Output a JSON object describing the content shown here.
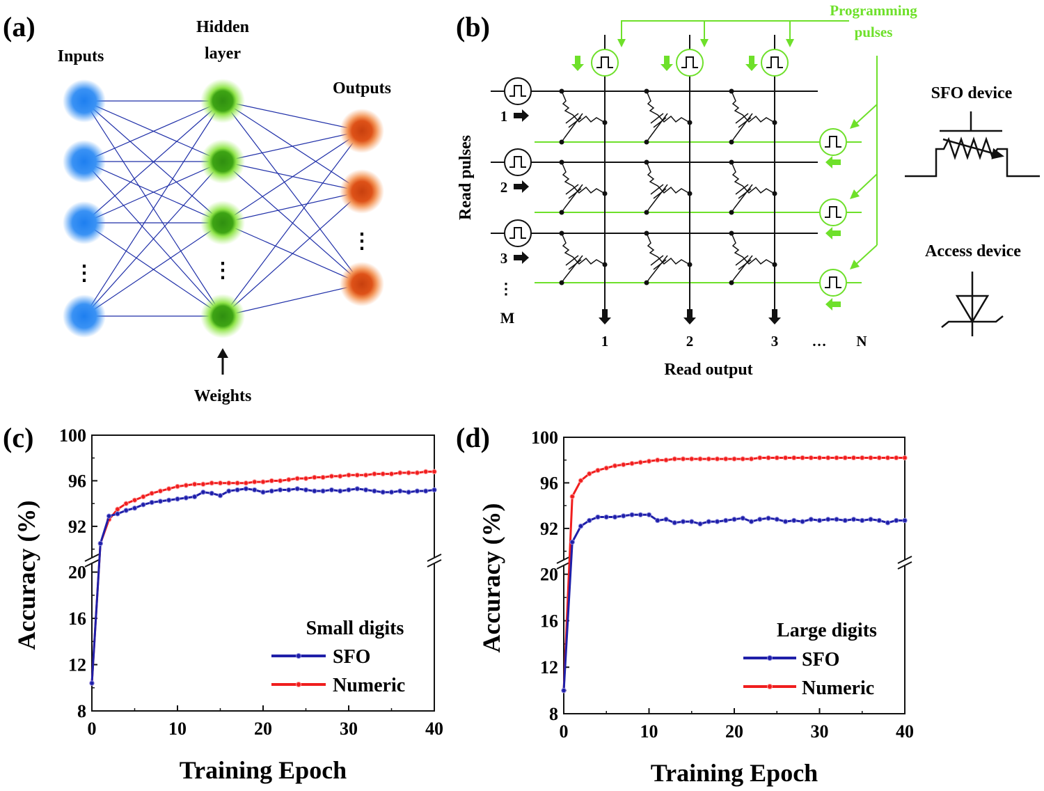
{
  "panel_a": {
    "tag": "(a)",
    "inputs_label": "Inputs",
    "hidden_label_1": "Hidden",
    "hidden_label_2": "layer",
    "outputs_label": "Outputs",
    "weights_label": "Weights",
    "dots": "⋮",
    "colors": {
      "input": "#2f8cf5",
      "hidden": "#3aa80f",
      "output": "#e2561b",
      "edge": "#1f2fa8"
    }
  },
  "panel_b": {
    "tag": "(b)",
    "programming_1": "Programming",
    "programming_2": "pulses",
    "read_pulses": "Read pulses",
    "read_output": "Read output",
    "row_labels": [
      "1",
      "2",
      "3"
    ],
    "row_more": "⋮",
    "row_last": "M",
    "col_labels": [
      "1",
      "2",
      "3"
    ],
    "col_more": "…",
    "col_last": "N",
    "sfo_device": "SFO device",
    "access_device": "Access device",
    "colors": {
      "program": "#6ee02a",
      "wire": "#111111"
    }
  },
  "chart_data": [
    {
      "type": "line",
      "tag": "(c)",
      "xlabel": "Training Epoch",
      "ylabel": "Accuracy (%)",
      "legend_title": "Small digits",
      "legend_position": "bottom-right",
      "xlim": [
        0,
        40
      ],
      "xticks": [
        "0",
        "10",
        "20",
        "30",
        "40"
      ],
      "yticks_upper": [
        "92",
        "96",
        "100"
      ],
      "yticks_lower": [
        "8",
        "12",
        "16",
        "20"
      ],
      "y_break": {
        "lower_range": [
          8,
          21
        ],
        "upper_range": [
          89,
          100
        ]
      },
      "series": [
        {
          "name": "SFO",
          "color": "#1f1fa8",
          "x": [
            0,
            1,
            2,
            3,
            4,
            5,
            6,
            7,
            8,
            9,
            10,
            11,
            12,
            13,
            14,
            15,
            16,
            17,
            18,
            19,
            20,
            21,
            22,
            23,
            24,
            25,
            26,
            27,
            28,
            29,
            30,
            31,
            32,
            33,
            34,
            35,
            36,
            37,
            38,
            39,
            40
          ],
          "y": [
            10.4,
            90.5,
            92.9,
            93.1,
            93.4,
            93.6,
            93.9,
            94.1,
            94.2,
            94.3,
            94.4,
            94.5,
            94.6,
            95.0,
            94.9,
            94.7,
            95.1,
            95.2,
            95.3,
            95.2,
            95.0,
            95.1,
            95.2,
            95.2,
            95.3,
            95.2,
            95.1,
            95.1,
            95.2,
            95.1,
            95.2,
            95.3,
            95.2,
            95.1,
            95.0,
            95.0,
            95.1,
            95.0,
            95.1,
            95.1,
            95.2
          ]
        },
        {
          "name": "Numeric",
          "color": "#f01e1e",
          "x": [
            0,
            1,
            2,
            3,
            4,
            5,
            6,
            7,
            8,
            9,
            10,
            11,
            12,
            13,
            14,
            15,
            16,
            17,
            18,
            19,
            20,
            21,
            22,
            23,
            24,
            25,
            26,
            27,
            28,
            29,
            30,
            31,
            32,
            33,
            34,
            35,
            36,
            37,
            38,
            39,
            40
          ],
          "y": [
            10.4,
            90.5,
            92.6,
            93.5,
            94.0,
            94.3,
            94.6,
            94.9,
            95.1,
            95.3,
            95.5,
            95.6,
            95.7,
            95.7,
            95.8,
            95.8,
            95.8,
            95.8,
            95.8,
            95.9,
            95.9,
            96.0,
            96.0,
            96.1,
            96.2,
            96.2,
            96.3,
            96.3,
            96.4,
            96.4,
            96.5,
            96.5,
            96.5,
            96.6,
            96.6,
            96.6,
            96.7,
            96.7,
            96.7,
            96.8,
            96.8
          ]
        }
      ]
    },
    {
      "type": "line",
      "tag": "(d)",
      "xlabel": "Training Epoch",
      "ylabel": "Accuracy (%)",
      "legend_title": "Large digits",
      "legend_position": "bottom-right",
      "xlim": [
        0,
        40
      ],
      "xticks": [
        "0",
        "10",
        "20",
        "30",
        "40"
      ],
      "yticks_upper": [
        "92",
        "96",
        "100"
      ],
      "yticks_lower": [
        "8",
        "12",
        "16",
        "20"
      ],
      "y_break": {
        "lower_range": [
          8,
          21
        ],
        "upper_range": [
          89,
          100
        ]
      },
      "series": [
        {
          "name": "SFO",
          "color": "#1f1fa8",
          "x": [
            0,
            1,
            2,
            3,
            4,
            5,
            6,
            7,
            8,
            9,
            10,
            11,
            12,
            13,
            14,
            15,
            16,
            17,
            18,
            19,
            20,
            21,
            22,
            23,
            24,
            25,
            26,
            27,
            28,
            29,
            30,
            31,
            32,
            33,
            34,
            35,
            36,
            37,
            38,
            39,
            40
          ],
          "y": [
            10.0,
            90.8,
            92.2,
            92.7,
            93.0,
            93.0,
            93.0,
            93.1,
            93.2,
            93.2,
            93.2,
            92.7,
            92.8,
            92.5,
            92.6,
            92.6,
            92.4,
            92.6,
            92.6,
            92.7,
            92.8,
            92.9,
            92.6,
            92.8,
            92.9,
            92.8,
            92.6,
            92.7,
            92.6,
            92.8,
            92.7,
            92.8,
            92.8,
            92.7,
            92.8,
            92.7,
            92.8,
            92.7,
            92.5,
            92.7,
            92.7
          ]
        },
        {
          "name": "Numeric",
          "color": "#f01e1e",
          "x": [
            0,
            1,
            2,
            3,
            4,
            5,
            6,
            7,
            8,
            9,
            10,
            11,
            12,
            13,
            14,
            15,
            16,
            17,
            18,
            19,
            20,
            21,
            22,
            23,
            24,
            25,
            26,
            27,
            28,
            29,
            30,
            31,
            32,
            33,
            34,
            35,
            36,
            37,
            38,
            39,
            40
          ],
          "y": [
            10.0,
            94.8,
            96.2,
            96.8,
            97.1,
            97.3,
            97.5,
            97.6,
            97.7,
            97.8,
            97.9,
            98.0,
            98.0,
            98.1,
            98.1,
            98.1,
            98.1,
            98.1,
            98.1,
            98.1,
            98.1,
            98.1,
            98.1,
            98.2,
            98.2,
            98.2,
            98.2,
            98.2,
            98.2,
            98.2,
            98.2,
            98.2,
            98.2,
            98.2,
            98.2,
            98.2,
            98.2,
            98.2,
            98.2,
            98.2,
            98.2
          ]
        }
      ]
    }
  ]
}
